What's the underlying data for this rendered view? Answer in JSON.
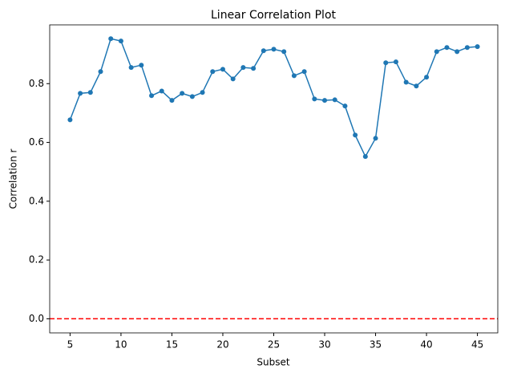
{
  "chart_data": {
    "type": "line",
    "title": "Linear Correlation Plot",
    "x_label": "Subset",
    "y_label": "Correlation r",
    "x": [
      5,
      6,
      7,
      8,
      9,
      10,
      11,
      12,
      13,
      14,
      15,
      16,
      17,
      18,
      19,
      20,
      21,
      22,
      23,
      24,
      25,
      26,
      27,
      28,
      29,
      30,
      31,
      32,
      33,
      34,
      35,
      36,
      37,
      38,
      39,
      40,
      41,
      42,
      43,
      44,
      45
    ],
    "series": [
      {
        "color": "#1f77b4",
        "values": [
          0.677,
          0.767,
          0.77,
          0.841,
          0.953,
          0.945,
          0.855,
          0.863,
          0.759,
          0.775,
          0.743,
          0.767,
          0.756,
          0.77,
          0.841,
          0.849,
          0.816,
          0.855,
          0.852,
          0.912,
          0.917,
          0.909,
          0.827,
          0.841,
          0.748,
          0.743,
          0.745,
          0.724,
          0.625,
          0.552,
          0.614,
          0.871,
          0.874,
          0.805,
          0.792,
          0.822,
          0.909,
          0.923,
          0.909,
          0.923,
          0.926
        ]
      }
    ],
    "reference_line": {
      "value": 0,
      "color": "#ff0000"
    },
    "xlim": [
      3,
      47
    ],
    "ylim": [
      -0.048,
      1.0
    ],
    "xticks": [
      5,
      10,
      15,
      20,
      25,
      30,
      35,
      40,
      45
    ],
    "yticks": [
      {
        "value": 0,
        "label": "0.0"
      },
      0.2,
      0.4,
      0.6,
      0.8
    ]
  }
}
